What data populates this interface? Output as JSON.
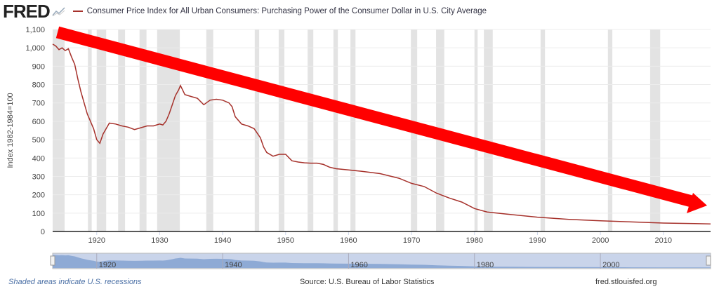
{
  "header": {
    "logo": "FRED",
    "logo_icon": "chart-line-icon",
    "title": "Consumer Price Index for All Urban Consumers: Purchasing Power of the Consumer Dollar in U.S. City Average",
    "series_color": "#a6312b"
  },
  "chart_data": {
    "type": "line",
    "ylabel": "Index 1982-1984=100",
    "ylim": [
      0,
      1100
    ],
    "xlim": [
      1913,
      2017.5
    ],
    "yticks": [
      "0",
      "100",
      "200",
      "300",
      "400",
      "500",
      "600",
      "700",
      "800",
      "900",
      "1,000",
      "1,100"
    ],
    "xticks": [
      "1920",
      "1930",
      "1940",
      "1950",
      "1960",
      "1970",
      "1980",
      "1990",
      "2000",
      "2010"
    ],
    "navigator_ticks": [
      "1920",
      "1940",
      "1960",
      "1980",
      "2000"
    ],
    "grid": true,
    "series": [
      {
        "color": "#a6312b",
        "x": [
          1913,
          1913.5,
          1914,
          1914.5,
          1915,
          1915.5,
          1916,
          1916.5,
          1917,
          1917.5,
          1918,
          1918.5,
          1919,
          1919.5,
          1920,
          1920.5,
          1921,
          1921.5,
          1922,
          1923,
          1924,
          1925,
          1926,
          1927,
          1928,
          1929,
          1930,
          1930.5,
          1931,
          1931.5,
          1932,
          1932.5,
          1933,
          1933.3,
          1934,
          1935,
          1936,
          1937,
          1938,
          1939,
          1940,
          1941,
          1941.5,
          1942,
          1943,
          1944,
          1945,
          1946,
          1946.5,
          1947,
          1948,
          1949,
          1950,
          1951,
          1952,
          1953,
          1954,
          1955,
          1956,
          1957,
          1958,
          1960,
          1962,
          1965,
          1968,
          1970,
          1972,
          1974,
          1976,
          1978,
          1980,
          1982,
          1985,
          1990,
          1995,
          2000,
          2005,
          2010,
          2015,
          2017.5
        ],
        "y": [
          1020,
          1010,
          990,
          1000,
          985,
          995,
          950,
          910,
          830,
          760,
          700,
          640,
          600,
          560,
          500,
          480,
          530,
          560,
          590,
          585,
          575,
          568,
          555,
          565,
          575,
          575,
          585,
          580,
          600,
          640,
          690,
          740,
          770,
          795,
          745,
          735,
          725,
          690,
          715,
          720,
          715,
          700,
          680,
          625,
          585,
          575,
          560,
          510,
          460,
          430,
          410,
          420,
          420,
          385,
          378,
          374,
          372,
          372,
          365,
          350,
          342,
          335,
          328,
          315,
          290,
          262,
          245,
          208,
          182,
          160,
          125,
          106,
          95,
          78,
          66,
          58,
          52,
          46,
          43,
          41
        ]
      }
    ],
    "recessions": [
      [
        1913.0,
        1914.9
      ],
      [
        1918.6,
        1919.2
      ],
      [
        1920.0,
        1921.5
      ],
      [
        1923.4,
        1924.5
      ],
      [
        1926.8,
        1927.9
      ],
      [
        1929.6,
        1933.2
      ],
      [
        1937.4,
        1938.5
      ],
      [
        1945.1,
        1945.8
      ],
      [
        1948.9,
        1949.8
      ],
      [
        1953.5,
        1954.4
      ],
      [
        1957.6,
        1958.3
      ],
      [
        1960.3,
        1961.1
      ],
      [
        1969.9,
        1970.9
      ],
      [
        1973.9,
        1975.2
      ],
      [
        1980.0,
        1980.5
      ],
      [
        1981.5,
        1982.9
      ],
      [
        1990.5,
        1991.2
      ],
      [
        2001.2,
        2001.9
      ],
      [
        2007.9,
        2009.5
      ]
    ],
    "annotation": {
      "type": "arrow",
      "color": "#ff0000"
    }
  },
  "footer": {
    "note": "Shaded areas indicate U.S. recessions",
    "source": "Source: U.S. Bureau of Labor Statistics",
    "site": "fred.stlouisfed.org"
  }
}
